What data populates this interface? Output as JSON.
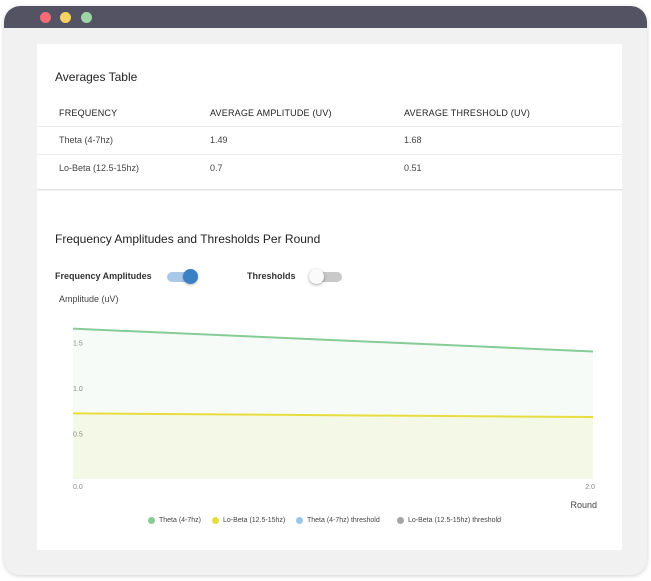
{
  "averages_table": {
    "title": "Averages Table",
    "columns": [
      "FREQUENCY",
      "AVERAGE AMPLITUDE (uV)",
      "AVERAGE THRESHOLD (uV)"
    ],
    "rows": [
      {
        "frequency": "Theta (4-7hz)",
        "amplitude": "1.49",
        "threshold": "1.68"
      },
      {
        "frequency": "Lo-Beta (12.5-15hz)",
        "amplitude": "0.7",
        "threshold": "0.51"
      }
    ]
  },
  "chart_panel": {
    "title": "Frequency Amplitudes and Thresholds Per Round",
    "toggles": [
      {
        "label": "Frequency Amplitudes",
        "on": true
      },
      {
        "label": "Thresholds",
        "on": false
      }
    ]
  },
  "colors": {
    "theta": "#86cc96",
    "lobeta": "#e8dd3f",
    "theta_threshold": "#9bc6ea",
    "lobeta_threshold": "#a5a5a5",
    "toggle_on": "#3b7fc4",
    "toggle_on_track": "#a9c9e8"
  },
  "chart_data": {
    "type": "line",
    "ylabel": "Amplitude (uV)",
    "xlabel": "Round",
    "x_ticks": [
      "0.0",
      "2.0"
    ],
    "y_ticks": [
      "0.5",
      "1.0",
      "1.5"
    ],
    "xlim": [
      0,
      2
    ],
    "ylim": [
      0,
      1.8
    ],
    "series": [
      {
        "name": "Theta (4-7hz)",
        "x": [
          0,
          2
        ],
        "y": [
          1.65,
          1.4
        ]
      },
      {
        "name": "Lo-Beta (12.5-15hz)",
        "x": [
          0,
          2
        ],
        "y": [
          0.72,
          0.68
        ]
      }
    ],
    "legend": [
      "Theta (4-7hz)",
      "Lo-Beta (12.5-15hz)",
      "Theta (4-7hz) threshold",
      "Lo-Beta (12.5-15hz) threshold"
    ],
    "legend_position": "bottom"
  }
}
